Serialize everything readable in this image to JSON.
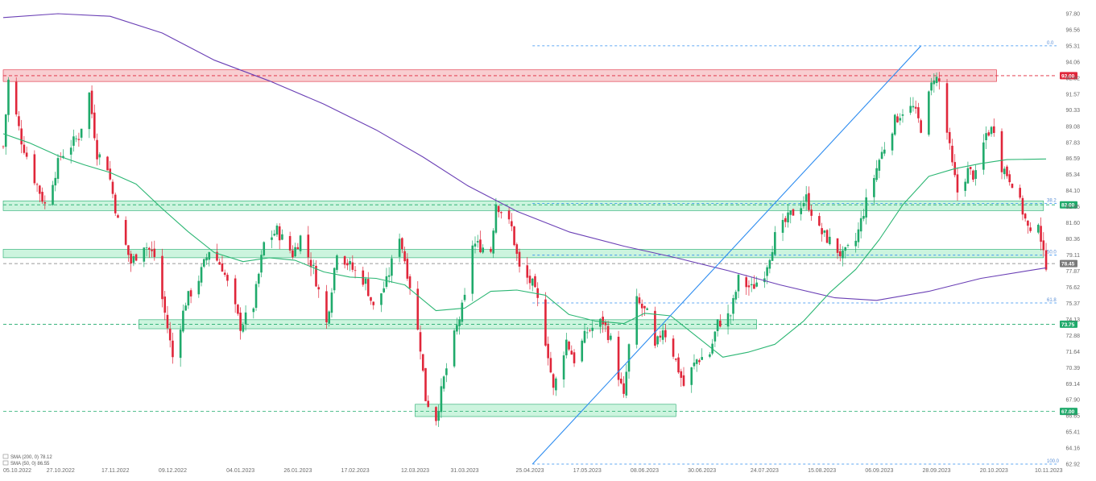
{
  "chart_data": {
    "type": "candlestick",
    "colors": {
      "up": "#1faa6b",
      "down": "#e0263a",
      "sma200": "#6a3fb5",
      "sma50": "#2bb673",
      "fib": "#2d8cf0",
      "resistance": "#e0263a",
      "support": "#1faa6b",
      "zone_green": "#b7efd0",
      "zone_red": "#f7c6c9"
    },
    "y_axis": {
      "min": 62.92,
      "max": 97.8,
      "ticks": [
        "97.80",
        "96.56",
        "95.31",
        "94.06",
        "92.82",
        "91.57",
        "90.33",
        "89.08",
        "87.83",
        "86.59",
        "85.34",
        "84.10",
        "82.85",
        "81.60",
        "80.36",
        "79.11",
        "77.87",
        "76.62",
        "75.37",
        "74.13",
        "72.88",
        "71.64",
        "70.39",
        "69.14",
        "67.90",
        "66.65",
        "65.41",
        "64.16",
        "62.92"
      ]
    },
    "x_axis": {
      "start": "2022-10-05",
      "end": "2023-11-13",
      "ticks": [
        {
          "label": "05.10.2022",
          "date": "2022-10-05"
        },
        {
          "label": "27.10.2022",
          "date": "2022-10-27"
        },
        {
          "label": "17.11.2022",
          "date": "2022-11-17"
        },
        {
          "label": "09.12.2022",
          "date": "2022-12-09"
        },
        {
          "label": "04.01.2023",
          "date": "2023-01-04"
        },
        {
          "label": "26.01.2023",
          "date": "2023-01-26"
        },
        {
          "label": "17.02.2023",
          "date": "2023-02-17"
        },
        {
          "label": "12.03.2023",
          "date": "2023-03-12"
        },
        {
          "label": "31.03.2023",
          "date": "2023-03-31"
        },
        {
          "label": "25.04.2023",
          "date": "2023-04-25"
        },
        {
          "label": "17.05.2023",
          "date": "2023-05-17"
        },
        {
          "label": "08.06.2023",
          "date": "2023-06-08"
        },
        {
          "label": "30.06.2023",
          "date": "2023-06-30"
        },
        {
          "label": "24.07.2023",
          "date": "2023-07-24"
        },
        {
          "label": "15.08.2023",
          "date": "2023-08-15"
        },
        {
          "label": "06.09.2023",
          "date": "2023-09-06"
        },
        {
          "label": "28.09.2023",
          "date": "2023-09-28"
        },
        {
          "label": "20.10.2023",
          "date": "2023-10-20"
        },
        {
          "label": "10.11.2023",
          "date": "2023-11-10"
        }
      ]
    },
    "close_path": [
      [
        "2022-10-05",
        87.5
      ],
      [
        "2022-10-07",
        92.6
      ],
      [
        "2022-10-12",
        88.0
      ],
      [
        "2022-10-17",
        85.0
      ],
      [
        "2022-10-21",
        83.0
      ],
      [
        "2022-10-27",
        86.8
      ],
      [
        "2022-11-03",
        88.3
      ],
      [
        "2022-11-07",
        91.6
      ],
      [
        "2022-11-10",
        87.0
      ],
      [
        "2022-11-14",
        86.0
      ],
      [
        "2022-11-18",
        81.7
      ],
      [
        "2022-11-23",
        78.5
      ],
      [
        "2022-11-28",
        80.0
      ],
      [
        "2022-12-02",
        79.0
      ],
      [
        "2022-12-07",
        73.5
      ],
      [
        "2022-12-09",
        71.2
      ],
      [
        "2022-12-14",
        75.5
      ],
      [
        "2022-12-19",
        77.3
      ],
      [
        "2022-12-23",
        79.5
      ],
      [
        "2022-12-28",
        78.2
      ],
      [
        "2023-01-04",
        73.6
      ],
      [
        "2023-01-09",
        75.2
      ],
      [
        "2023-01-13",
        80.0
      ],
      [
        "2023-01-18",
        81.0
      ],
      [
        "2023-01-24",
        79.2
      ],
      [
        "2023-01-27",
        80.5
      ],
      [
        "2023-02-01",
        78.0
      ],
      [
        "2023-02-06",
        73.8
      ],
      [
        "2023-02-10",
        79.5
      ],
      [
        "2023-02-16",
        78.0
      ],
      [
        "2023-02-21",
        77.0
      ],
      [
        "2023-02-24",
        75.0
      ],
      [
        "2023-03-01",
        77.0
      ],
      [
        "2023-03-06",
        80.7
      ],
      [
        "2023-03-10",
        76.8
      ],
      [
        "2023-03-14",
        72.0
      ],
      [
        "2023-03-16",
        68.0
      ],
      [
        "2023-03-20",
        66.5
      ],
      [
        "2023-03-23",
        69.5
      ],
      [
        "2023-03-27",
        72.8
      ],
      [
        "2023-03-31",
        75.7
      ],
      [
        "2023-04-03",
        80.0
      ],
      [
        "2023-04-10",
        79.5
      ],
      [
        "2023-04-12",
        83.2
      ],
      [
        "2023-04-18",
        81.2
      ],
      [
        "2023-04-21",
        78.0
      ],
      [
        "2023-04-26",
        76.8
      ],
      [
        "2023-04-28",
        75.5
      ],
      [
        "2023-05-02",
        71.5
      ],
      [
        "2023-05-04",
        68.6
      ],
      [
        "2023-05-09",
        72.5
      ],
      [
        "2023-05-12",
        71.0
      ],
      [
        "2023-05-17",
        73.2
      ],
      [
        "2023-05-23",
        74.0
      ],
      [
        "2023-05-26",
        72.5
      ],
      [
        "2023-05-31",
        68.0
      ],
      [
        "2023-06-02",
        72.0
      ],
      [
        "2023-06-05",
        75.5
      ],
      [
        "2023-06-09",
        74.5
      ],
      [
        "2023-06-12",
        71.8
      ],
      [
        "2023-06-15",
        73.5
      ],
      [
        "2023-06-19",
        71.5
      ],
      [
        "2023-06-23",
        69.0
      ],
      [
        "2023-06-28",
        71.0
      ],
      [
        "2023-07-03",
        71.5
      ],
      [
        "2023-07-06",
        73.8
      ],
      [
        "2023-07-11",
        74.5
      ],
      [
        "2023-07-14",
        77.2
      ],
      [
        "2023-07-19",
        76.5
      ],
      [
        "2023-07-24",
        77.8
      ],
      [
        "2023-07-28",
        80.5
      ],
      [
        "2023-08-03",
        82.2
      ],
      [
        "2023-08-09",
        83.5
      ],
      [
        "2023-08-14",
        81.0
      ],
      [
        "2023-08-18",
        80.2
      ],
      [
        "2023-08-23",
        79.0
      ],
      [
        "2023-08-28",
        80.2
      ],
      [
        "2023-08-31",
        82.5
      ],
      [
        "2023-09-06",
        86.5
      ],
      [
        "2023-09-12",
        89.5
      ],
      [
        "2023-09-15",
        90.3
      ],
      [
        "2023-09-19",
        90.5
      ],
      [
        "2023-09-22",
        89.0
      ],
      [
        "2023-09-27",
        93.0
      ],
      [
        "2023-09-29",
        92.5
      ],
      [
        "2023-10-04",
        86.0
      ],
      [
        "2023-10-06",
        84.0
      ],
      [
        "2023-10-10",
        85.6
      ],
      [
        "2023-10-13",
        85.2
      ],
      [
        "2023-10-17",
        88.5
      ],
      [
        "2023-10-20",
        89.0
      ],
      [
        "2023-10-23",
        86.0
      ],
      [
        "2023-10-27",
        84.8
      ],
      [
        "2023-10-31",
        82.5
      ],
      [
        "2023-11-03",
        80.5
      ],
      [
        "2023-11-06",
        81.9
      ],
      [
        "2023-11-08",
        79.0
      ],
      [
        "2023-11-09",
        78.45
      ]
    ],
    "sma200": {
      "label": "SMA (200, 0)",
      "value": "78.12",
      "points": [
        [
          "2022-10-05",
          97.5
        ],
        [
          "2022-10-26",
          97.8
        ],
        [
          "2022-11-15",
          97.6
        ],
        [
          "2022-12-05",
          96.3
        ],
        [
          "2022-12-25",
          94.2
        ],
        [
          "2023-01-15",
          92.6
        ],
        [
          "2023-02-05",
          90.8
        ],
        [
          "2023-02-25",
          88.8
        ],
        [
          "2023-03-15",
          86.7
        ],
        [
          "2023-04-01",
          84.5
        ],
        [
          "2023-04-20",
          82.5
        ],
        [
          "2023-05-10",
          80.9
        ],
        [
          "2023-05-31",
          79.8
        ],
        [
          "2023-06-20",
          78.9
        ],
        [
          "2023-07-10",
          77.9
        ],
        [
          "2023-07-30",
          76.8
        ],
        [
          "2023-08-20",
          75.8
        ],
        [
          "2023-09-05",
          75.6
        ],
        [
          "2023-09-25",
          76.3
        ],
        [
          "2023-10-15",
          77.3
        ],
        [
          "2023-11-09",
          78.12
        ]
      ]
    },
    "sma50": {
      "label": "SMA (50, 0)",
      "value": "86.55",
      "points": [
        [
          "2022-10-05",
          88.5
        ],
        [
          "2022-10-15",
          87.8
        ],
        [
          "2022-10-26",
          86.8
        ],
        [
          "2022-11-05",
          86.1
        ],
        [
          "2022-11-15",
          85.5
        ],
        [
          "2022-11-25",
          84.6
        ],
        [
          "2022-12-05",
          82.7
        ],
        [
          "2022-12-15",
          80.9
        ],
        [
          "2022-12-25",
          79.3
        ],
        [
          "2023-01-05",
          78.6
        ],
        [
          "2023-01-15",
          78.9
        ],
        [
          "2023-01-25",
          78.7
        ],
        [
          "2023-02-05",
          77.8
        ],
        [
          "2023-02-15",
          77.4
        ],
        [
          "2023-02-25",
          77.3
        ],
        [
          "2023-03-08",
          76.8
        ],
        [
          "2023-03-20",
          74.8
        ],
        [
          "2023-03-31",
          75.0
        ],
        [
          "2023-04-10",
          76.3
        ],
        [
          "2023-04-20",
          76.4
        ],
        [
          "2023-05-01",
          76.0
        ],
        [
          "2023-05-10",
          74.5
        ],
        [
          "2023-05-20",
          74.0
        ],
        [
          "2023-05-31",
          73.8
        ],
        [
          "2023-06-08",
          74.6
        ],
        [
          "2023-06-18",
          74.4
        ],
        [
          "2023-06-28",
          72.8
        ],
        [
          "2023-07-08",
          71.2
        ],
        [
          "2023-07-18",
          71.6
        ],
        [
          "2023-07-28",
          72.2
        ],
        [
          "2023-08-08",
          74.0
        ],
        [
          "2023-08-18",
          76.2
        ],
        [
          "2023-08-28",
          78.0
        ],
        [
          "2023-09-06",
          80.3
        ],
        [
          "2023-09-15",
          83.0
        ],
        [
          "2023-09-25",
          85.2
        ],
        [
          "2023-10-05",
          85.8
        ],
        [
          "2023-10-15",
          86.2
        ],
        [
          "2023-10-25",
          86.5
        ],
        [
          "2023-11-09",
          86.55
        ]
      ]
    },
    "fibonacci": [
      {
        "label": "0.0",
        "value": 95.31
      },
      {
        "label": "38.2",
        "value": 83.1
      },
      {
        "label": "50.0",
        "value": 79.1
      },
      {
        "label": "61.8",
        "value": 75.4
      },
      {
        "label": "100.0",
        "value": 62.92
      }
    ],
    "fib_start_date": "2023-04-26",
    "trendline": [
      [
        "2023-04-26",
        62.92
      ],
      [
        "2023-09-22",
        95.31
      ]
    ],
    "levels": [
      {
        "value": 93.0,
        "label": "93.00",
        "color": "#e0263a"
      },
      {
        "value": 83.0,
        "label": "83.00",
        "color": "#1faa6b"
      },
      {
        "value": 78.45,
        "label": "78.45",
        "color": "#7a7a7a"
      },
      {
        "value": 73.75,
        "label": "73.75",
        "color": "#1faa6b"
      },
      {
        "value": 67.0,
        "label": "67.00",
        "color": "#1faa6b"
      }
    ],
    "zones": [
      {
        "kind": "red",
        "from": "2022-10-05",
        "to": "2023-10-21",
        "low": 92.55,
        "high": 93.45
      },
      {
        "kind": "green",
        "from": "2022-10-05",
        "to": "2023-11-08",
        "low": 82.55,
        "high": 83.3
      },
      {
        "kind": "green",
        "from": "2022-10-05",
        "to": "2023-11-08",
        "low": 78.9,
        "high": 79.55
      },
      {
        "kind": "green",
        "from": "2022-11-26",
        "to": "2023-07-21",
        "low": 73.4,
        "high": 74.1
      },
      {
        "kind": "green",
        "from": "2023-03-12",
        "to": "2023-06-20",
        "low": 66.6,
        "high": 67.55
      }
    ]
  }
}
